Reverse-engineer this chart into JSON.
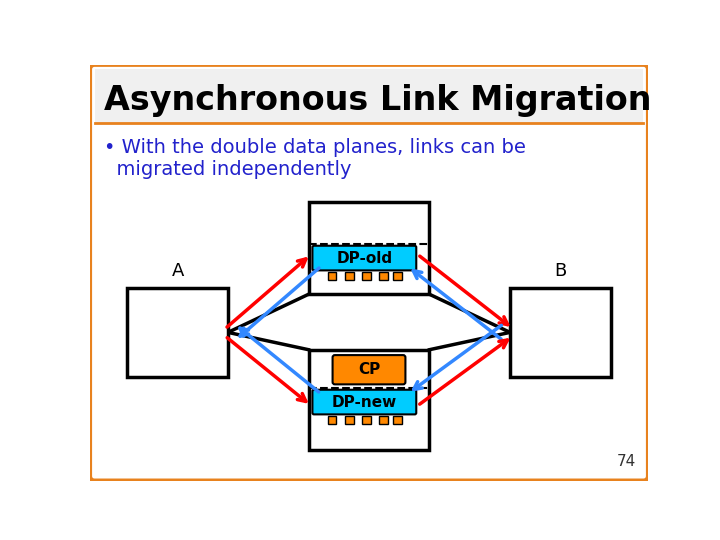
{
  "title": "Asynchronous Link Migration",
  "bullet": "• With the double data planes, links can be\n  migrated independently",
  "slide_bg": "#FFFFFF",
  "border_color": "#E8821E",
  "title_color": "#000000",
  "bullet_color": "#2222CC",
  "box_A_label": "A",
  "box_B_label": "B",
  "dp_old_label": "DP-old",
  "dp_new_label": "DP-new",
  "cp_label": "CP",
  "dp_old_color": "#00CCFF",
  "dp_new_color": "#00CCFF",
  "cp_color": "#FF8800",
  "arrow_red": "#FF0000",
  "arrow_blue": "#3388FF",
  "connector_color": "#FF8800",
  "page_num": "74",
  "title_fontsize": 24,
  "bullet_fontsize": 14
}
